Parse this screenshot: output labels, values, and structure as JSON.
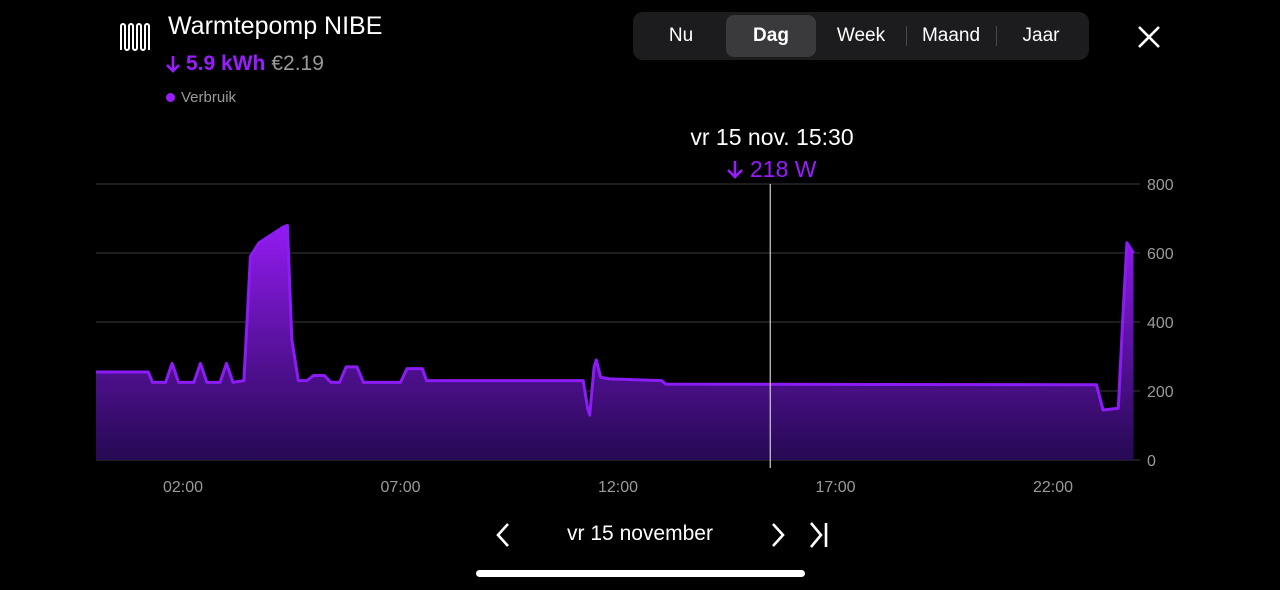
{
  "header": {
    "title": "Warmtepomp NIBE",
    "energy": "5.9 kWh",
    "cost": "€2.19",
    "legend": "Verbruik"
  },
  "tabs": [
    "Nu",
    "Dag",
    "Week",
    "Maand",
    "Jaar"
  ],
  "active_tab": 1,
  "tooltip": {
    "time": "vr 15 nov. 15:30",
    "value": "218 W"
  },
  "footer": {
    "date": "vr 15 november"
  },
  "chart_data": {
    "type": "area",
    "color": "#8b1cf5",
    "x": [
      0,
      1.2,
      1.3,
      1.6,
      1.75,
      1.9,
      2.25,
      2.4,
      2.55,
      2.85,
      3.0,
      3.15,
      3.4,
      3.55,
      3.75,
      4.3,
      4.4,
      4.5,
      4.65,
      4.85,
      5.0,
      5.25,
      5.4,
      5.6,
      5.75,
      6.0,
      6.15,
      7.0,
      7.15,
      7.5,
      7.6,
      11.2,
      11.3,
      11.35,
      11.45,
      11.5,
      11.6,
      11.8,
      13.0,
      13.1,
      23.0,
      23.15,
      23.5,
      23.6,
      23.7,
      23.85
    ],
    "values": [
      255,
      255,
      225,
      225,
      280,
      225,
      225,
      280,
      225,
      225,
      280,
      225,
      230,
      590,
      630,
      675,
      680,
      350,
      230,
      230,
      245,
      245,
      225,
      225,
      270,
      270,
      225,
      225,
      265,
      265,
      230,
      230,
      150,
      130,
      270,
      290,
      240,
      235,
      230,
      220,
      218,
      145,
      150,
      400,
      630,
      600
    ],
    "xlim": [
      0,
      24
    ],
    "xticks": [
      {
        "value": 2,
        "label": "02:00"
      },
      {
        "value": 7,
        "label": "07:00"
      },
      {
        "value": 12,
        "label": "12:00"
      },
      {
        "value": 17,
        "label": "17:00"
      },
      {
        "value": 22,
        "label": "22:00"
      }
    ],
    "ylim": [
      0,
      800
    ],
    "yticks": [
      0,
      200,
      400,
      600,
      800
    ],
    "grid": true,
    "cursor_x": 15.5
  }
}
